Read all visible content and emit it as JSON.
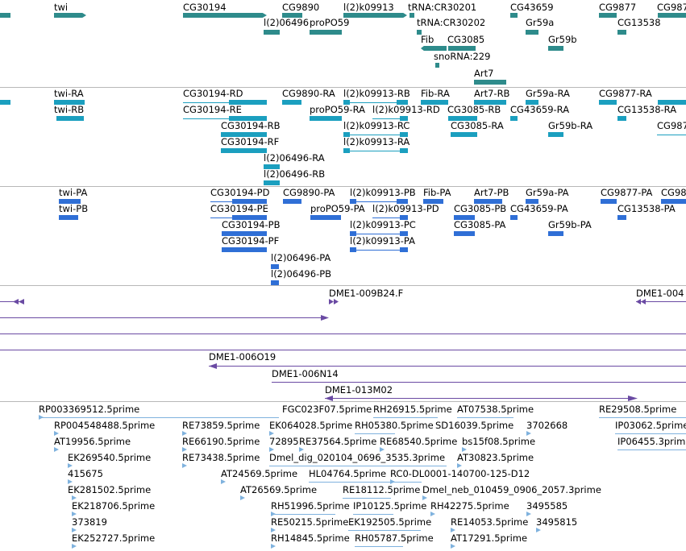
{
  "colors": {
    "gene": "#2e8b8b",
    "transcript": "#1b9fbf",
    "protein": "#2f6fd6",
    "clone": "#6a4aa3",
    "est": "#7fb2de",
    "separator": "#b8b8b8"
  },
  "tracks": {
    "genes": {
      "labels": [
        "twi",
        "CG30194",
        "CG9890",
        "l(2)k09913",
        "tRNA:CR30201",
        "CG43659",
        "CG9877",
        "CG987",
        "l(2)06496",
        "proPO59",
        "tRNA:CR30202",
        "Gr59a",
        "CG13538",
        "Fib",
        "CG3085",
        "Gr59b",
        "snoRNA:229",
        "Art7"
      ]
    },
    "transcripts": {
      "labels": [
        "twi-RA",
        "CG30194-RD",
        "CG9890-RA",
        "l(2)k09913-RB",
        "Fib-RA",
        "Art7-RB",
        "Gr59a-RA",
        "CG9877-RA",
        "twi-RB",
        "CG30194-RE",
        "proPO59-RA",
        "l(2)k09913-RD",
        "CG3085-RB",
        "CG43659-RA",
        "CG13538-RA",
        "CG30194-RB",
        "l(2)k09913-RC",
        "CG3085-RA",
        "Gr59b-RA",
        "CG987",
        "CG30194-RF",
        "l(2)k09913-RA",
        "l(2)06496-RA",
        "l(2)06496-RB"
      ]
    },
    "proteins": {
      "labels": [
        "twi-PA",
        "CG30194-PD",
        "CG9890-PA",
        "l(2)k09913-PB",
        "Fib-PA",
        "Art7-PB",
        "Gr59a-PA",
        "CG9877-PA",
        "CG98",
        "twi-PB",
        "CG30194-PE",
        "proPO59-PA",
        "l(2)k09913-PD",
        "CG3085-PB",
        "CG43659-PA",
        "CG13538-PA",
        "CG30194-PB",
        "l(2)k09913-PC",
        "CG3085-PA",
        "Gr59b-PA",
        "CG30194-PF",
        "l(2)k09913-PA",
        "l(2)06496-PA",
        "l(2)06496-PB"
      ]
    },
    "clones": {
      "labels": [
        "DME1-009B24.F",
        "DME1-004",
        "DME1-006O19",
        "DME1-006N14",
        "DME1-013M02"
      ]
    },
    "ests": {
      "labels": [
        "RP003369512.5prime",
        "FGC023F07.5prime",
        "RH26915.5prime",
        "AT07538.5prime",
        "RE29508.5prime",
        "RP004548488.5prime",
        "RE73859.5prime",
        "EK064028.5prime",
        "RH05380.5prime",
        "SD16039.5prime",
        "3702668",
        "IP03062.5prime",
        "AT19956.5prime",
        "RE66190.5prime",
        "72895",
        "RE37564.5prime",
        "RE68540.5prime",
        "bs15f08.5prime",
        "IP06455.3prim",
        "EK269540.5prime",
        "RE73438.5prime",
        "Dmel_dig_020104_0696_3535.3prime",
        "AT30823.5prime",
        "415675",
        "AT24569.5prime",
        "HL04764.5prime",
        "RC0-DL0001-140700-125-D12",
        "EK281502.5prime",
        "AT26569.5prime",
        "RE18112.5prime",
        "Dmel_neb_010459_0906_2057.3prime",
        "EK218706.5prime",
        "RH51996.5prime",
        "IP10125.5prime",
        "RH42275.5prime",
        "3495585",
        "373819",
        "RE50215.5prime",
        "EK192505.5prime",
        "RE14053.5prime",
        "3495815",
        "EK252727.5prime",
        "RH14845.5prime",
        "RH05787.5prime",
        "AT17291.5prime"
      ]
    }
  }
}
